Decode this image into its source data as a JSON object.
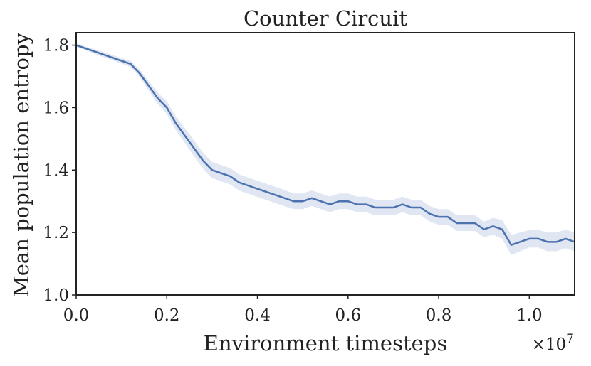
{
  "chart_data": {
    "type": "line",
    "title": "Counter Circuit",
    "xlabel": "Environment timesteps",
    "ylabel": "Mean population entropy",
    "x_multiplier_label": "×10",
    "x_multiplier_exponent": "7",
    "xlim": [
      0.0,
      1.1
    ],
    "ylim": [
      1.0,
      1.84
    ],
    "x_ticks": [
      0.0,
      0.2,
      0.4,
      0.6,
      0.8,
      1.0
    ],
    "x_tick_labels": [
      "0.0",
      "0.2",
      "0.4",
      "0.6",
      "0.8",
      "1.0"
    ],
    "y_ticks": [
      1.0,
      1.2,
      1.4,
      1.6,
      1.8
    ],
    "y_tick_labels": [
      "1.0",
      "1.2",
      "1.4",
      "1.6",
      "1.8"
    ],
    "grid": false,
    "legend": "none",
    "colors": {
      "line": "#4c72b0",
      "band": "#c6d3ea",
      "axes": "#222222"
    },
    "series": [
      {
        "x": [
          0.0,
          0.02,
          0.04,
          0.06,
          0.08,
          0.1,
          0.12,
          0.14,
          0.16,
          0.18,
          0.2,
          0.22,
          0.24,
          0.26,
          0.28,
          0.3,
          0.32,
          0.34,
          0.36,
          0.38,
          0.4,
          0.42,
          0.44,
          0.46,
          0.48,
          0.5,
          0.52,
          0.54,
          0.56,
          0.58,
          0.6,
          0.62,
          0.64,
          0.66,
          0.68,
          0.7,
          0.72,
          0.74,
          0.76,
          0.78,
          0.8,
          0.82,
          0.84,
          0.86,
          0.88,
          0.9,
          0.92,
          0.94,
          0.96,
          0.98,
          1.0,
          1.02,
          1.04,
          1.06,
          1.08,
          1.1
        ],
        "values": [
          1.8,
          1.79,
          1.78,
          1.77,
          1.76,
          1.75,
          1.74,
          1.71,
          1.67,
          1.63,
          1.6,
          1.55,
          1.51,
          1.47,
          1.43,
          1.4,
          1.39,
          1.38,
          1.36,
          1.35,
          1.34,
          1.33,
          1.32,
          1.31,
          1.3,
          1.3,
          1.31,
          1.3,
          1.29,
          1.3,
          1.3,
          1.29,
          1.29,
          1.28,
          1.28,
          1.28,
          1.29,
          1.28,
          1.28,
          1.26,
          1.25,
          1.25,
          1.23,
          1.23,
          1.23,
          1.21,
          1.22,
          1.21,
          1.16,
          1.17,
          1.18,
          1.18,
          1.17,
          1.17,
          1.18,
          1.17
        ],
        "band_halfwidth": [
          0.005,
          0.006,
          0.007,
          0.008,
          0.008,
          0.009,
          0.01,
          0.012,
          0.015,
          0.018,
          0.02,
          0.022,
          0.024,
          0.025,
          0.026,
          0.026,
          0.026,
          0.026,
          0.026,
          0.026,
          0.026,
          0.026,
          0.026,
          0.026,
          0.025,
          0.025,
          0.025,
          0.025,
          0.025,
          0.025,
          0.025,
          0.025,
          0.025,
          0.025,
          0.025,
          0.025,
          0.025,
          0.025,
          0.025,
          0.025,
          0.025,
          0.025,
          0.025,
          0.025,
          0.025,
          0.025,
          0.027,
          0.03,
          0.032,
          0.03,
          0.028,
          0.028,
          0.03,
          0.03,
          0.03,
          0.03
        ]
      }
    ]
  }
}
